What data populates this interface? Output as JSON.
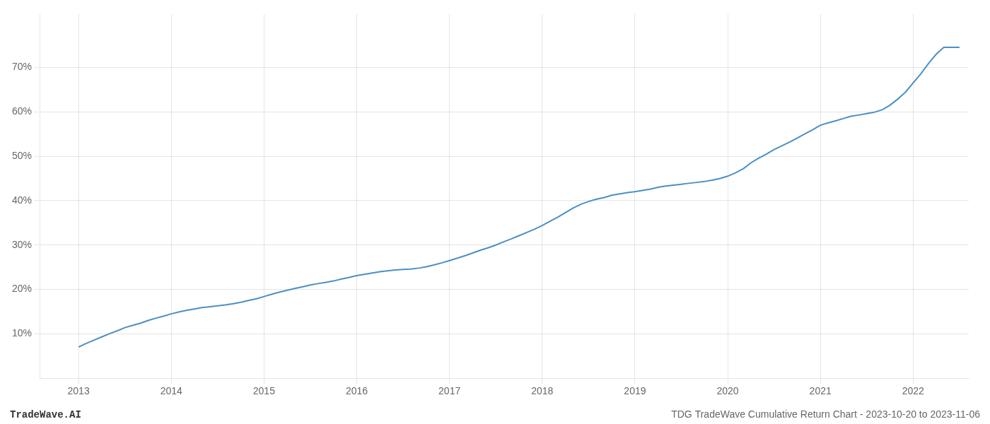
{
  "chart_data": {
    "type": "line",
    "annotations": [
      "TradeWave.AI",
      "TDG TradeWave Cumulative Return Chart - 2023-10-20 to 2023-11-06"
    ],
    "color": "#4a90c4",
    "grid": true,
    "x": [
      2013.0,
      2013.08,
      2013.17,
      2013.25,
      2013.33,
      2013.42,
      2013.5,
      2013.58,
      2013.67,
      2013.75,
      2013.83,
      2013.92,
      2014.0,
      2014.08,
      2014.17,
      2014.25,
      2014.33,
      2014.42,
      2014.5,
      2014.58,
      2014.67,
      2014.75,
      2014.83,
      2014.92,
      2015.0,
      2015.08,
      2015.17,
      2015.25,
      2015.33,
      2015.42,
      2015.5,
      2015.58,
      2015.67,
      2015.75,
      2015.83,
      2015.92,
      2016.0,
      2016.08,
      2016.17,
      2016.25,
      2016.33,
      2016.42,
      2016.5,
      2016.58,
      2016.67,
      2016.75,
      2016.83,
      2016.92,
      2017.0,
      2017.08,
      2017.17,
      2017.25,
      2017.33,
      2017.42,
      2017.5,
      2017.58,
      2017.67,
      2017.75,
      2017.83,
      2017.92,
      2018.0,
      2018.08,
      2018.17,
      2018.25,
      2018.33,
      2018.42,
      2018.5,
      2018.58,
      2018.67,
      2018.75,
      2018.83,
      2018.92,
      2019.0,
      2019.08,
      2019.17,
      2019.25,
      2019.33,
      2019.42,
      2019.5,
      2019.58,
      2019.67,
      2019.75,
      2019.83,
      2019.92,
      2020.0,
      2020.08,
      2020.17,
      2020.25,
      2020.33,
      2020.42,
      2020.5,
      2020.58,
      2020.67,
      2020.75,
      2020.83,
      2020.92,
      2021.0,
      2021.08,
      2021.17,
      2021.25,
      2021.33,
      2021.42,
      2021.5,
      2021.58,
      2021.67,
      2021.75,
      2021.83,
      2021.92,
      2022.0,
      2022.08,
      2022.17,
      2022.25,
      2022.33,
      2022.5
    ],
    "values": [
      7.0,
      7.8,
      8.6,
      9.3,
      10.0,
      10.7,
      11.4,
      11.9,
      12.4,
      13.0,
      13.5,
      14.0,
      14.5,
      14.9,
      15.3,
      15.6,
      15.9,
      16.1,
      16.3,
      16.5,
      16.8,
      17.1,
      17.5,
      17.9,
      18.4,
      18.9,
      19.4,
      19.8,
      20.2,
      20.6,
      21.0,
      21.3,
      21.6,
      21.9,
      22.3,
      22.7,
      23.1,
      23.4,
      23.7,
      24.0,
      24.2,
      24.4,
      24.5,
      24.6,
      24.8,
      25.1,
      25.5,
      26.0,
      26.5,
      27.0,
      27.6,
      28.2,
      28.8,
      29.4,
      30.0,
      30.7,
      31.4,
      32.1,
      32.8,
      33.6,
      34.4,
      35.3,
      36.3,
      37.3,
      38.3,
      39.2,
      39.8,
      40.3,
      40.7,
      41.2,
      41.5,
      41.8,
      42.0,
      42.3,
      42.6,
      43.0,
      43.3,
      43.5,
      43.7,
      43.9,
      44.1,
      44.3,
      44.6,
      45.0,
      45.5,
      46.2,
      47.2,
      48.5,
      49.5,
      50.5,
      51.5,
      52.3,
      53.2,
      54.1,
      55.0,
      56.0,
      57.0,
      57.5,
      58.0,
      58.5,
      59.0,
      59.3,
      59.6,
      59.9,
      60.5,
      61.5,
      62.8,
      64.5,
      66.5,
      68.5,
      71.0,
      73.0,
      74.5,
      74.5
    ],
    "xlim": [
      2012.58,
      2022.6
    ],
    "ylim": [
      0,
      82
    ],
    "xticks": [
      2013,
      2014,
      2015,
      2016,
      2017,
      2018,
      2019,
      2020,
      2021,
      2022
    ],
    "yticks": [
      {
        "value": 10,
        "label": "10%"
      },
      {
        "value": 20,
        "label": "20%"
      },
      {
        "value": 30,
        "label": "30%"
      },
      {
        "value": 40,
        "label": "40%"
      },
      {
        "value": 50,
        "label": "50%"
      },
      {
        "value": 60,
        "label": "60%"
      },
      {
        "value": 70,
        "label": "70%"
      }
    ]
  }
}
